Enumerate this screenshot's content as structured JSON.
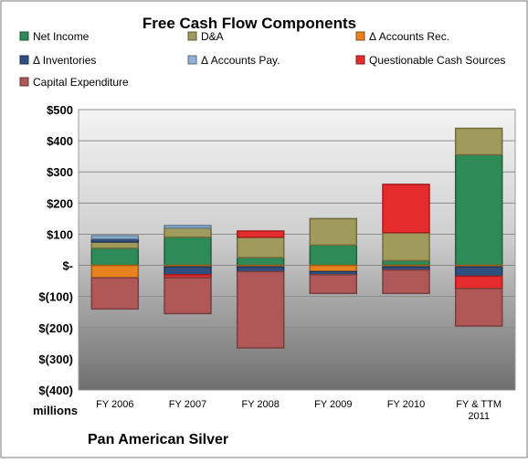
{
  "chart_data": {
    "type": "bar",
    "stacked": true,
    "title": "Free Cash Flow Components",
    "company": "Pan American Silver",
    "y_unit_label": "millions",
    "ylim": [
      -400,
      500
    ],
    "y_ticks": [
      500,
      400,
      300,
      200,
      100,
      0,
      -100,
      -200,
      -300,
      -400
    ],
    "y_tick_labels": [
      "$500",
      "$400",
      "$300",
      "$200",
      "$100",
      "$-",
      "$(100)",
      "$(200)",
      "$(300)",
      "$(400)"
    ],
    "grid": true,
    "legend_position": "top",
    "categories": [
      "FY 2006",
      "FY 2007",
      "FY 2008",
      "FY 2009",
      "FY 2010",
      "FY & TTM 2011"
    ],
    "series": [
      {
        "name": "Net Income",
        "color": "#2e8b57",
        "values": [
          55,
          90,
          25,
          65,
          15,
          355
        ]
      },
      {
        "name": "D&A",
        "color": "#a09a5c",
        "values": [
          20,
          30,
          65,
          85,
          90,
          85
        ]
      },
      {
        "name": "Δ Accounts Rec.",
        "color": "#e8821e",
        "values": [
          -40,
          -5,
          -5,
          -20,
          -5,
          -5
        ]
      },
      {
        "name": "Δ Inventories",
        "color": "#2f4f7f",
        "values": [
          10,
          -25,
          -15,
          -10,
          -10,
          -30
        ]
      },
      {
        "name": "Δ Accounts Pay.",
        "color": "#8fb3d6",
        "values": [
          10,
          8,
          0,
          0,
          0,
          0
        ]
      },
      {
        "name": "Questionable Cash Sources",
        "color": "#e52b2b",
        "values": [
          0,
          -10,
          20,
          0,
          155,
          -40
        ]
      },
      {
        "name": "Capital Expenditure",
        "color": "#b05858",
        "values": [
          -100,
          -115,
          -245,
          -60,
          -75,
          -120
        ]
      }
    ]
  }
}
